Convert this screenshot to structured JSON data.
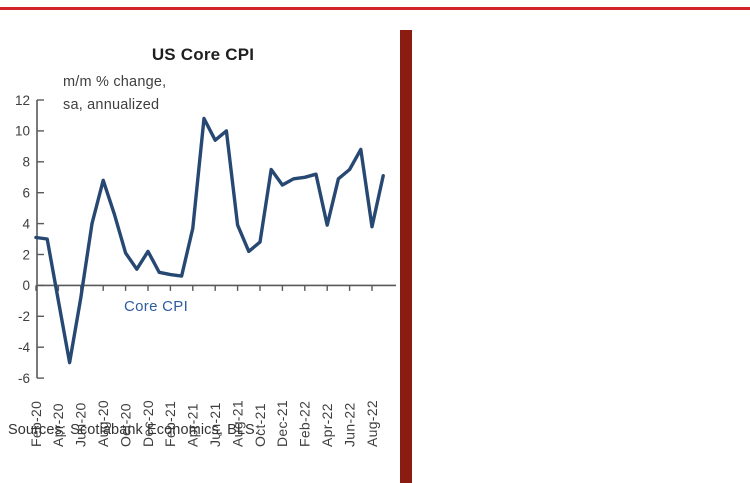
{
  "accents": {
    "top_rule_color": "#d2232a",
    "side_bar_color": "#8b1c12"
  },
  "chart": {
    "title": "US Core CPI",
    "annotation_line1": "m/m % change,",
    "annotation_line2": "sa, annualized",
    "series_label": "Core CPI",
    "series_label_color": "#2f5b9f",
    "line_color": "#274872",
    "axis_color": "#58595b",
    "text_color": "#3f3f3f",
    "sources": "Sources: Scotiabank Economics, BLS."
  },
  "chart_data": {
    "type": "line",
    "title": "US Core CPI",
    "ylabel": "",
    "xlabel": "",
    "units_note": "m/m % change, sa, annualized",
    "series_name": "Core CPI",
    "x": [
      "Feb-20",
      "Mar-20",
      "Apr-20",
      "May-20",
      "Jun-20",
      "Jul-20",
      "Aug-20",
      "Sep-20",
      "Oct-20",
      "Nov-20",
      "Dec-20",
      "Jan-21",
      "Feb-21",
      "Mar-21",
      "Apr-21",
      "May-21",
      "Jun-21",
      "Jul-21",
      "Aug-21",
      "Sep-21",
      "Oct-21",
      "Nov-21",
      "Dec-21",
      "Jan-22",
      "Feb-22",
      "Mar-22",
      "Apr-22",
      "May-22",
      "Jun-22",
      "Jul-22",
      "Aug-22",
      "Sep-22"
    ],
    "values": [
      3.1,
      3.0,
      -1.0,
      -5.0,
      -0.8,
      4.0,
      6.8,
      4.6,
      2.1,
      1.05,
      2.2,
      0.85,
      0.7,
      0.6,
      3.7,
      10.8,
      9.4,
      10.0,
      3.9,
      2.2,
      2.8,
      7.5,
      6.5,
      6.9,
      7.0,
      7.2,
      3.9,
      6.9,
      7.5,
      8.8,
      3.8,
      7.1
    ],
    "x_tick_labels": [
      "Feb-20",
      "Apr-20",
      "Jun-20",
      "Aug-20",
      "Oct-20",
      "Dec-20",
      "Feb-21",
      "Apr-21",
      "Jun-21",
      "Aug-21",
      "Oct-21",
      "Dec-21",
      "Feb-22",
      "Apr-22",
      "Jun-22",
      "Aug-22"
    ],
    "y_ticks": [
      12,
      10,
      8,
      6,
      4,
      2,
      0,
      -2,
      -4,
      -6
    ],
    "ylim": [
      -6,
      12
    ],
    "grid": "none (zero baseline only)",
    "legend_position": "in-plot text label"
  }
}
